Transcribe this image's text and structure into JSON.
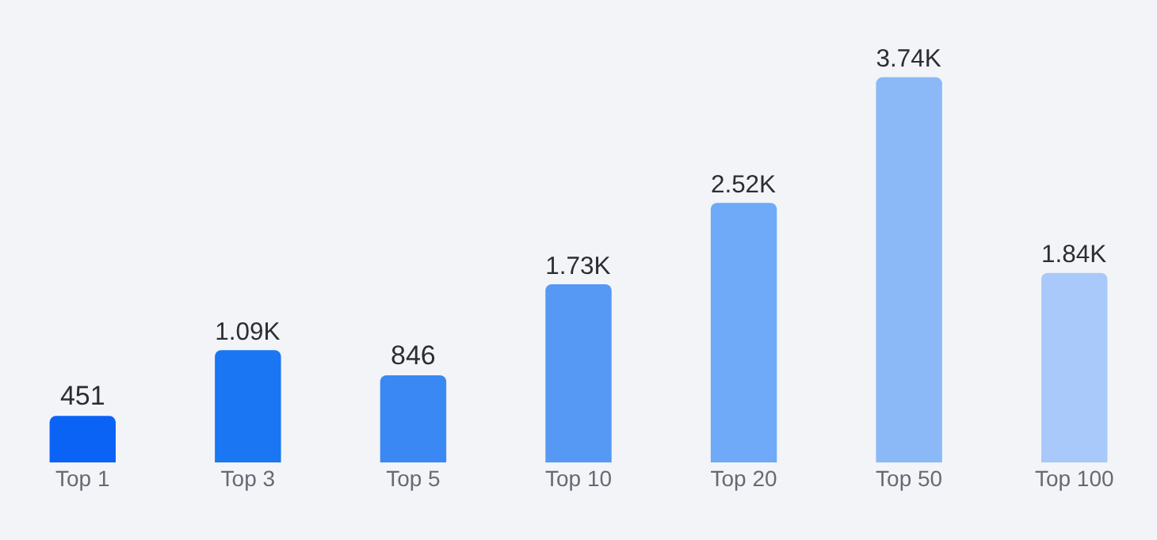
{
  "chart_data": {
    "type": "bar",
    "categories": [
      "Top 1",
      "Top 3",
      "Top 5",
      "Top 10",
      "Top 20",
      "Top 50",
      "Top 100"
    ],
    "values": [
      451,
      1090,
      846,
      1730,
      2520,
      3740,
      1840
    ],
    "value_labels": [
      "451",
      "1.09K",
      "846",
      "1.73K",
      "2.52K",
      "3.74K",
      "1.84K"
    ],
    "colors": [
      "#0b63f6",
      "#1a76f2",
      "#3a88f3",
      "#5599f5",
      "#6eaaf7",
      "#8bb9f8",
      "#a8c9f9"
    ],
    "tick_labels": "x"
  }
}
